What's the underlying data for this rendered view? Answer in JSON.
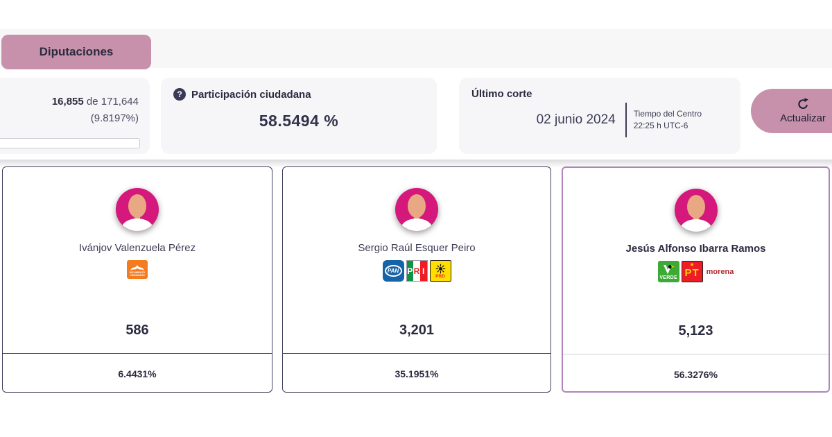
{
  "tabs": {
    "diputaciones": "Diputaciones"
  },
  "stats": {
    "actas": {
      "counted": "16,855",
      "de_label": "de",
      "total": "171,644",
      "percent": "(9.8197%)",
      "progress_percent": 9.8197
    },
    "participacion": {
      "help_glyph": "?",
      "label": "Participación ciudadana",
      "value": "58.5494 %"
    },
    "ultimo_corte": {
      "label": "Último corte",
      "date": "02 junio 2024",
      "timezone_name": "Tiempo del Centro",
      "time": "22:25 h UTC-6"
    },
    "refresh": {
      "label": "Actualizar"
    }
  },
  "parties": {
    "mc": {
      "label": "MOVIMIENTO CIUDADANO"
    },
    "pan": {
      "label": "PAN"
    },
    "pri": {
      "l1": "P",
      "l2": "R",
      "l3": "I"
    },
    "prd": {
      "label": "PRD"
    },
    "verde": {
      "label": "VERDE"
    },
    "pt": {
      "label": "PT"
    },
    "morena": {
      "label": "morena"
    }
  },
  "candidates": [
    {
      "name": "Ivánjov Valenzuela Pérez",
      "votes": "586",
      "percent": "6.4431%",
      "parties": [
        "MC"
      ],
      "highlighted": false
    },
    {
      "name": "Sergio Raúl Esquer Peiro",
      "votes": "3,201",
      "percent": "35.1951%",
      "parties": [
        "PAN",
        "PRI",
        "PRD"
      ],
      "highlighted": false
    },
    {
      "name": "Jesús Alfonso Ibarra Ramos",
      "votes": "5,123",
      "percent": "56.3276%",
      "parties": [
        "VERDE",
        "PT",
        "MORENA"
      ],
      "highlighted": true
    }
  ],
  "colors": {
    "accent_pink": "#c791ab",
    "highlight_purple": "#b083bd",
    "dark_navy_text": "#32324d",
    "card_gray": "#f6f6f8",
    "avatar_magenta": "#d4187c"
  }
}
